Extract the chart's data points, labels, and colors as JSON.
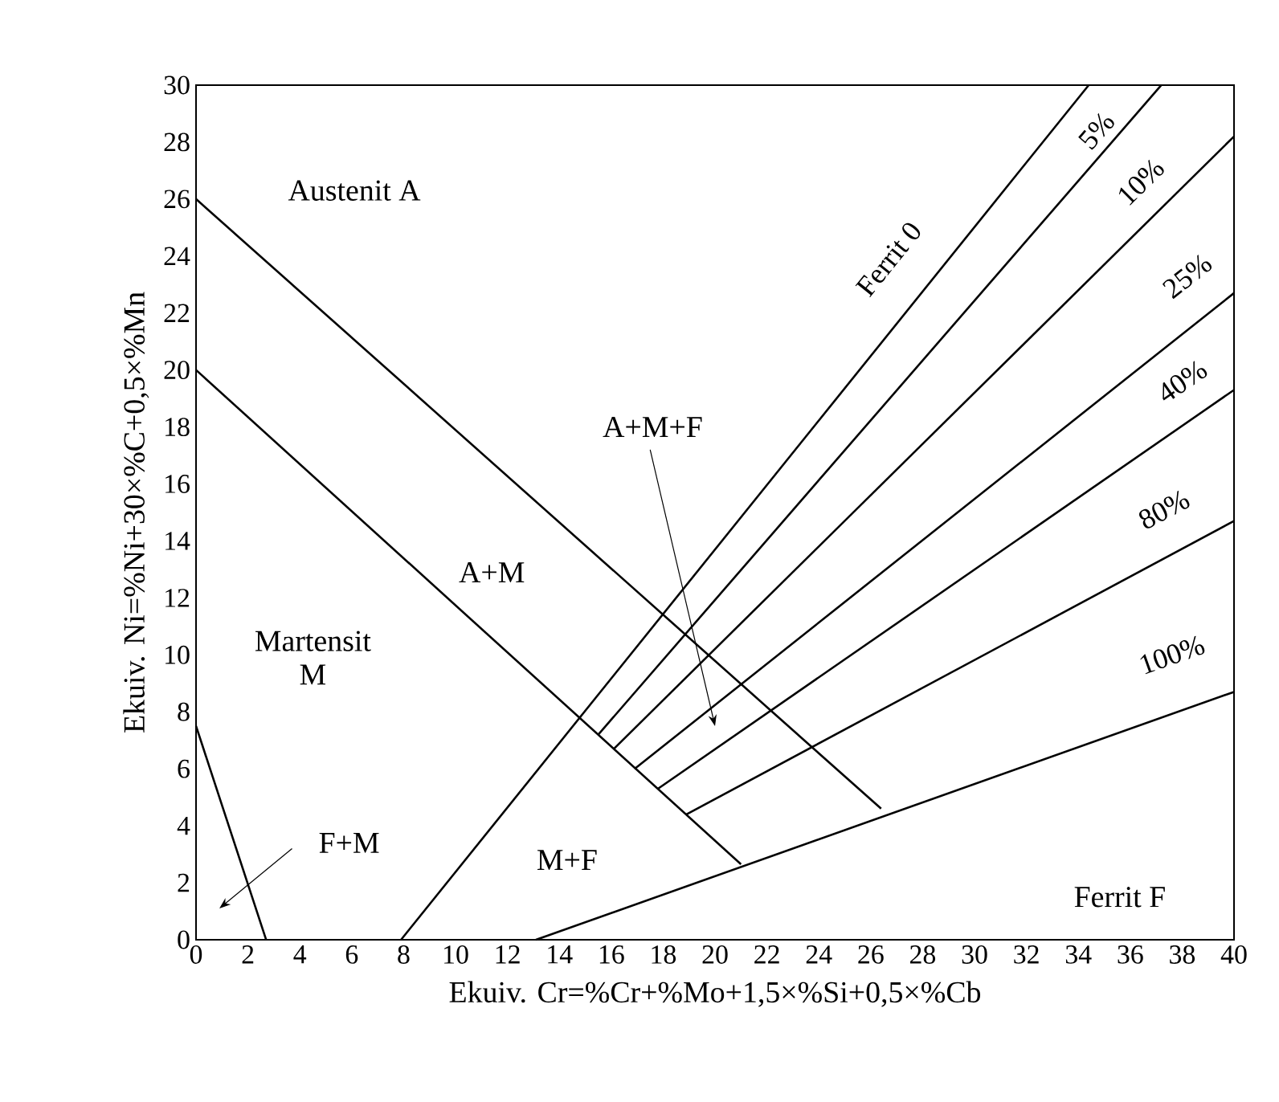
{
  "chart_data": {
    "type": "line",
    "xlabel": "Ekuiv. Cr=%Cr+%Mo+1,5×%Si+0,5×%Cb",
    "ylabel": "Ekuiv. Ni=%Ni+30×%C+0,5×%Mn",
    "xlim": [
      0,
      40
    ],
    "ylim": [
      0,
      30
    ],
    "xticks": [
      0,
      2,
      4,
      6,
      8,
      10,
      12,
      14,
      16,
      18,
      20,
      22,
      24,
      26,
      28,
      30,
      32,
      34,
      36,
      38,
      40
    ],
    "yticks": [
      0,
      2,
      4,
      6,
      8,
      10,
      12,
      14,
      16,
      18,
      20,
      22,
      24,
      26,
      28,
      30
    ],
    "marker": "none",
    "line_style": "solid",
    "series": [
      {
        "color": "#000000",
        "x": [
          0,
          26.4
        ],
        "values": [
          26,
          4.6
        ]
      },
      {
        "color": "#000000",
        "x": [
          0,
          21.0
        ],
        "values": [
          20,
          2.65
        ]
      },
      {
        "color": "#000000",
        "x": [
          0,
          2.7
        ],
        "values": [
          7.5,
          0
        ]
      },
      {
        "name": "Ferrit 0",
        "color": "#000000",
        "x": [
          7.9,
          34.4
        ],
        "values": [
          0,
          30
        ]
      },
      {
        "name": "5%",
        "color": "#000000",
        "x": [
          15.5,
          37.2
        ],
        "values": [
          7.2,
          30
        ]
      },
      {
        "name": "10%",
        "color": "#000000",
        "x": [
          16.1,
          40
        ],
        "values": [
          6.7,
          28.2
        ]
      },
      {
        "name": "25%",
        "color": "#000000",
        "x": [
          16.9,
          40
        ],
        "values": [
          6.0,
          22.7
        ]
      },
      {
        "name": "40%",
        "color": "#000000",
        "x": [
          17.8,
          40
        ],
        "values": [
          5.3,
          19.3
        ]
      },
      {
        "name": "80%",
        "color": "#000000",
        "x": [
          18.9,
          40
        ],
        "values": [
          4.4,
          14.7
        ]
      },
      {
        "name": "100%",
        "color": "#000000",
        "x": [
          13.1,
          40
        ],
        "values": [
          0,
          8.7
        ]
      }
    ],
    "annotations": [
      "Austenit A",
      "A+M+F",
      "A+M",
      "Martensit M",
      "F+M",
      "M+F",
      "Ferrit F"
    ]
  }
}
